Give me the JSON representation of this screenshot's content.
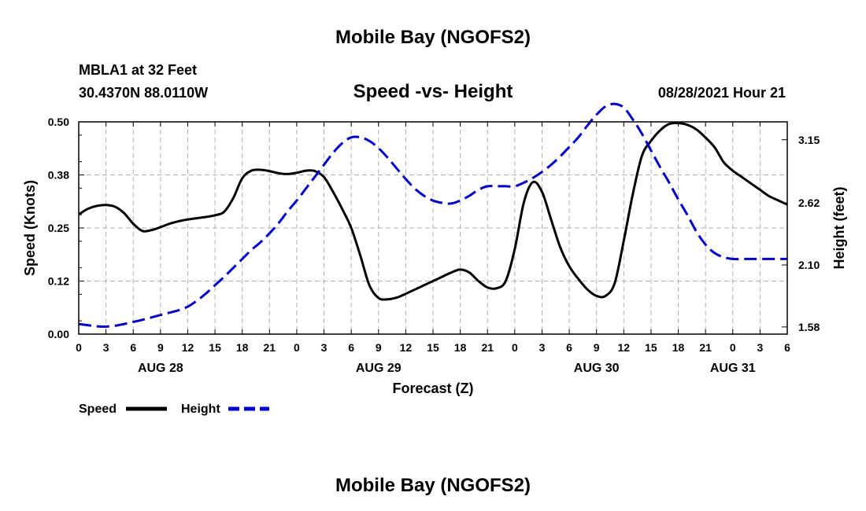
{
  "header": {
    "title": "Mobile Bay (NGOFS2)",
    "station": "MBLA1 at 32 Feet",
    "coords": "30.4370N  88.0110W",
    "subtitle": "Speed -vs- Height",
    "timestamp": "08/28/2021 Hour 21"
  },
  "footer": {
    "title": "Mobile Bay (NGOFS2)"
  },
  "legend": {
    "speed_label": "Speed",
    "height_label": "Height"
  },
  "colors": {
    "speed": "#000000",
    "height": "#0000cc",
    "grid": "#b0b0b0"
  },
  "chart_data": {
    "type": "line",
    "title": "Speed -vs- Height",
    "xlabel": "Forecast (Z)",
    "ylabel": "Speed (Knots)",
    "y2label": "Height (feet)",
    "x_hours_range": [
      0,
      78
    ],
    "x_tick_labels": [
      "0",
      "3",
      "6",
      "9",
      "12",
      "15",
      "18",
      "21",
      "0",
      "3",
      "6",
      "9",
      "12",
      "15",
      "18",
      "21",
      "0",
      "3",
      "6",
      "9",
      "12",
      "15",
      "18",
      "21",
      "0",
      "3",
      "6"
    ],
    "date_labels": [
      {
        "label": "AUG 28",
        "hour": 9
      },
      {
        "label": "AUG 29",
        "hour": 33
      },
      {
        "label": "AUG 30",
        "hour": 57
      },
      {
        "label": "AUG 31",
        "hour": 72
      }
    ],
    "ylim": [
      0,
      0.5
    ],
    "y_ticks": [
      "0.00",
      "0.12",
      "0.25",
      "0.38",
      "0.50"
    ],
    "y_tick_values": [
      0,
      0.125,
      0.25,
      0.375,
      0.5
    ],
    "y2lim": [
      1.52,
      3.3
    ],
    "y2_ticks": [
      "1.58",
      "2.10",
      "2.62",
      "3.15"
    ],
    "y2_tick_values": [
      1.58,
      2.1,
      2.62,
      3.15
    ],
    "grid": true,
    "legend_position": "bottom-left",
    "series": [
      {
        "name": "Speed",
        "axis": "left",
        "style": "solid",
        "x": [
          0,
          1,
          2,
          3,
          4,
          5,
          6,
          7,
          8,
          9,
          10,
          11,
          12,
          13,
          14,
          15,
          16,
          17,
          18,
          19,
          20,
          21,
          22,
          23,
          24,
          25,
          26,
          27,
          28,
          29,
          30,
          31,
          32,
          33,
          34,
          35,
          36,
          37,
          38,
          39,
          40,
          41,
          42,
          43,
          44,
          45,
          46,
          47,
          48,
          49,
          50,
          51,
          52,
          53,
          54,
          55,
          56,
          57,
          58,
          59,
          60,
          61,
          62,
          63,
          64,
          65,
          66,
          67,
          68,
          69,
          70,
          71,
          72,
          73,
          74,
          75,
          76,
          77,
          78
        ],
        "values": [
          0.282,
          0.295,
          0.302,
          0.304,
          0.3,
          0.285,
          0.26,
          0.243,
          0.245,
          0.252,
          0.26,
          0.266,
          0.27,
          0.273,
          0.276,
          0.28,
          0.288,
          0.32,
          0.367,
          0.385,
          0.387,
          0.384,
          0.379,
          0.377,
          0.38,
          0.385,
          0.384,
          0.37,
          0.335,
          0.295,
          0.25,
          0.185,
          0.115,
          0.085,
          0.082,
          0.086,
          0.095,
          0.105,
          0.115,
          0.125,
          0.135,
          0.145,
          0.152,
          0.145,
          0.125,
          0.11,
          0.108,
          0.125,
          0.2,
          0.31,
          0.358,
          0.335,
          0.27,
          0.205,
          0.16,
          0.13,
          0.105,
          0.09,
          0.09,
          0.12,
          0.22,
          0.33,
          0.42,
          0.455,
          0.48,
          0.495,
          0.497,
          0.493,
          0.482,
          0.463,
          0.44,
          0.405,
          0.385,
          0.37,
          0.355,
          0.34,
          0.325,
          0.315,
          0.305
        ]
      },
      {
        "name": "Height",
        "axis": "right",
        "style": "dashed",
        "x": [
          0,
          1,
          2,
          3,
          4,
          5,
          6,
          7,
          8,
          9,
          10,
          11,
          12,
          13,
          14,
          15,
          16,
          17,
          18,
          19,
          20,
          21,
          22,
          23,
          24,
          25,
          26,
          27,
          28,
          29,
          30,
          31,
          32,
          33,
          34,
          35,
          36,
          37,
          38,
          39,
          40,
          41,
          42,
          43,
          44,
          45,
          46,
          47,
          48,
          49,
          50,
          51,
          52,
          53,
          54,
          55,
          56,
          57,
          58,
          59,
          60,
          61,
          62,
          63,
          64,
          65,
          66,
          67,
          68,
          69,
          70,
          71,
          72,
          73,
          74,
          75,
          76,
          77,
          78
        ],
        "values": [
          1.605,
          1.595,
          1.585,
          1.583,
          1.59,
          1.605,
          1.622,
          1.64,
          1.66,
          1.68,
          1.7,
          1.72,
          1.75,
          1.8,
          1.86,
          1.93,
          2.0,
          2.075,
          2.15,
          2.225,
          2.29,
          2.365,
          2.45,
          2.55,
          2.64,
          2.74,
          2.84,
          2.94,
          3.04,
          3.12,
          3.17,
          3.17,
          3.14,
          3.08,
          3.0,
          2.91,
          2.82,
          2.74,
          2.68,
          2.64,
          2.62,
          2.615,
          2.64,
          2.68,
          2.73,
          2.76,
          2.76,
          2.76,
          2.76,
          2.79,
          2.83,
          2.88,
          2.94,
          3.01,
          3.09,
          3.17,
          3.27,
          3.36,
          3.43,
          3.45,
          3.42,
          3.32,
          3.2,
          3.06,
          2.92,
          2.79,
          2.65,
          2.52,
          2.38,
          2.27,
          2.2,
          2.165,
          2.15,
          2.15,
          2.15,
          2.15,
          2.15,
          2.15,
          2.15
        ]
      }
    ]
  }
}
